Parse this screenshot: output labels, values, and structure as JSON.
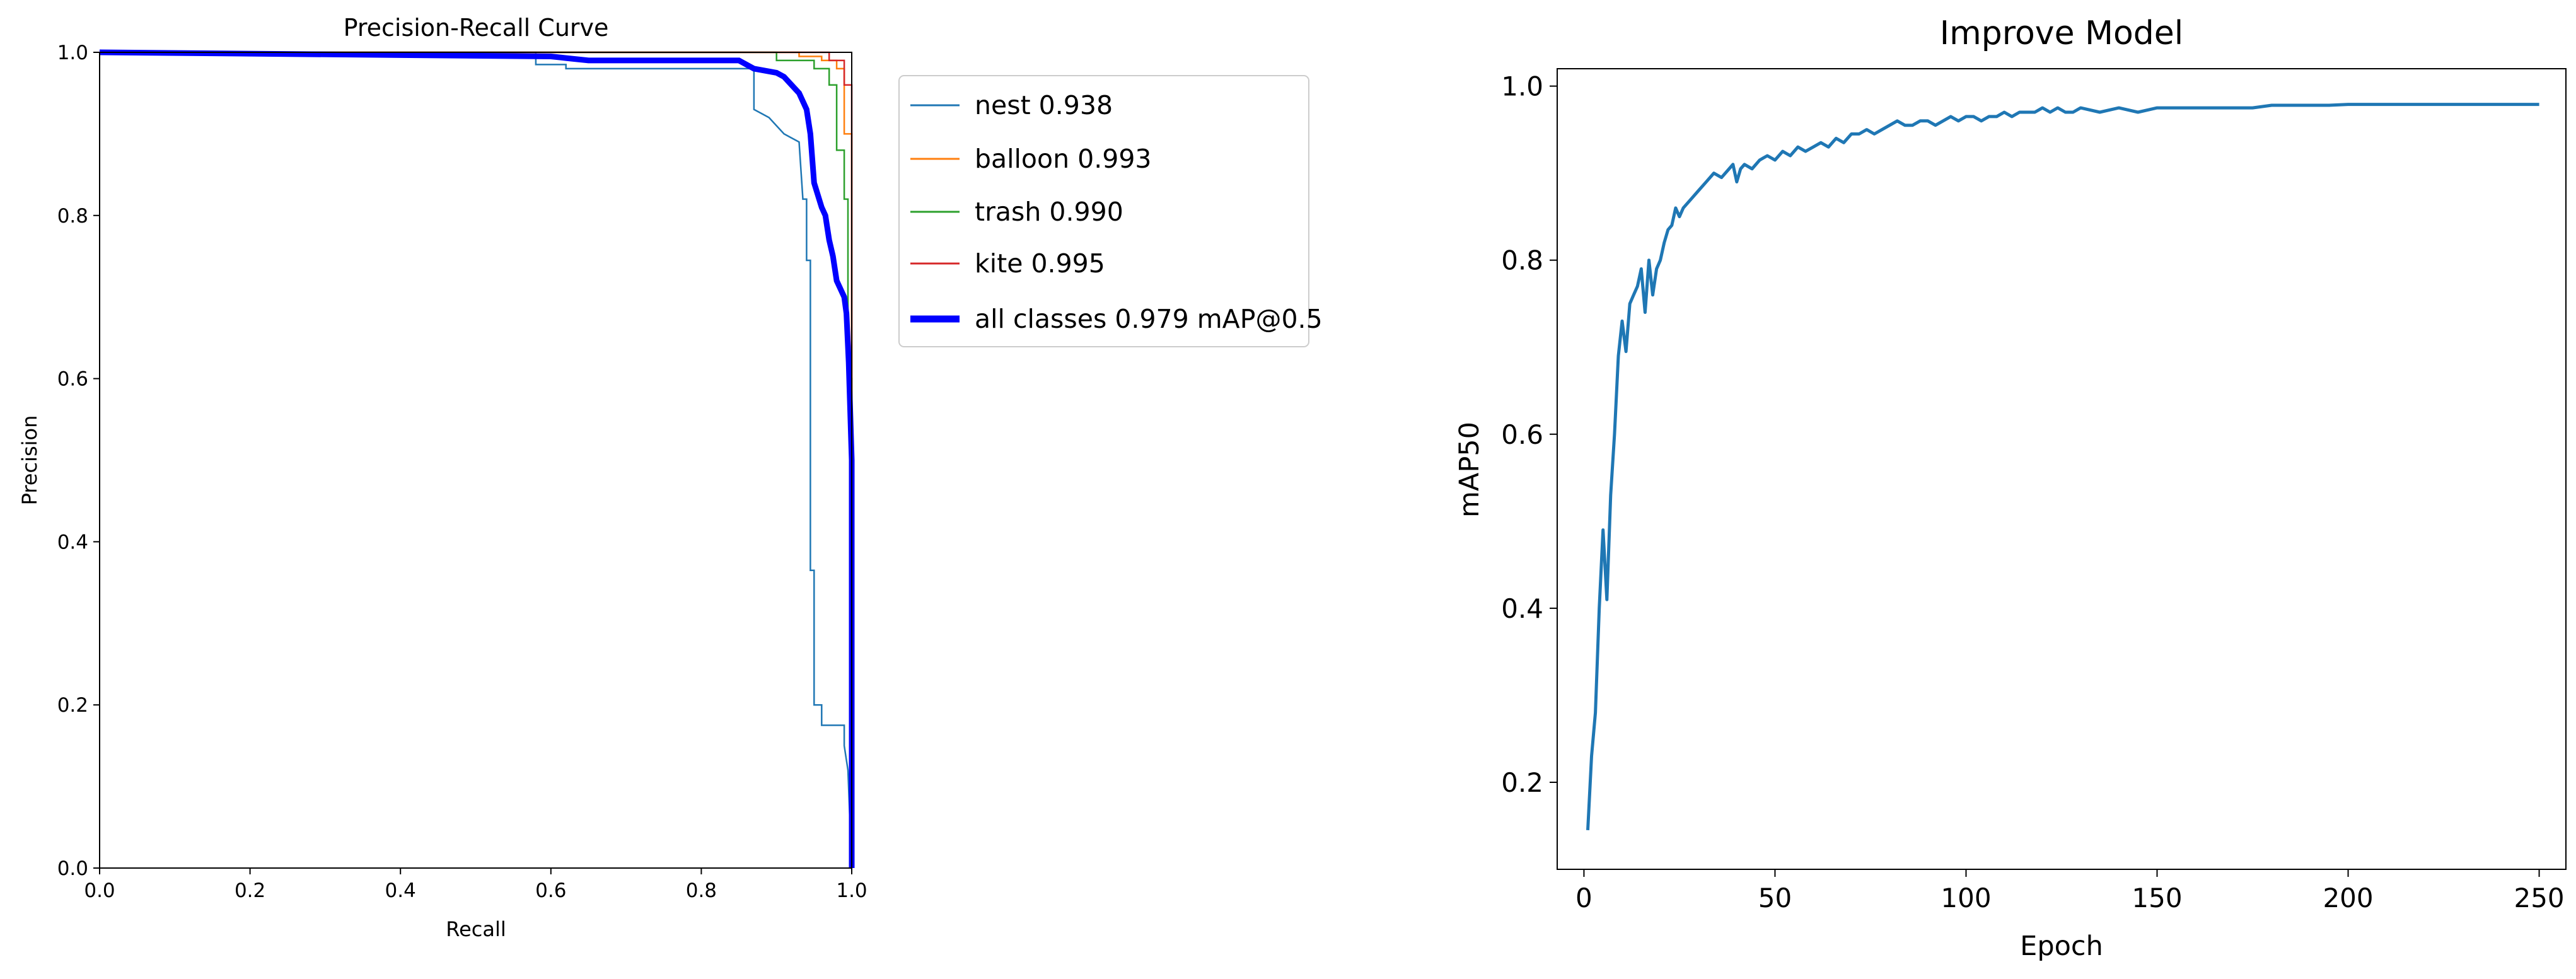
{
  "chart_data": [
    {
      "type": "line",
      "title": "Precision-Recall Curve",
      "xlabel": "Recall",
      "ylabel": "Precision",
      "xlim": [
        0,
        1
      ],
      "ylim": [
        0,
        1
      ],
      "xticks": [
        "0.0",
        "0.2",
        "0.4",
        "0.6",
        "0.8",
        "1.0"
      ],
      "yticks": [
        "0.0",
        "0.2",
        "0.4",
        "0.6",
        "0.8",
        "1.0"
      ],
      "grid": false,
      "legend_position": "outside-right",
      "series": [
        {
          "name": "nest 0.938",
          "color": "#1f77b4",
          "x": [
            0,
            0.58,
            0.58,
            0.62,
            0.62,
            0.87,
            0.87,
            0.88,
            0.89,
            0.9,
            0.91,
            0.92,
            0.93,
            0.935,
            0.94,
            0.94,
            0.945,
            0.945,
            0.95,
            0.95,
            0.96,
            0.96,
            0.99,
            0.99,
            0.995,
            1.0
          ],
          "y": [
            1.0,
            1.0,
            0.985,
            0.985,
            0.98,
            0.98,
            0.93,
            0.925,
            0.92,
            0.91,
            0.9,
            0.895,
            0.89,
            0.82,
            0.82,
            0.745,
            0.745,
            0.365,
            0.365,
            0.2,
            0.2,
            0.175,
            0.175,
            0.15,
            0.12,
            0.0
          ]
        },
        {
          "name": "balloon 0.993",
          "color": "#ff7f0e",
          "x": [
            0,
            0.93,
            0.93,
            0.96,
            0.96,
            0.98,
            0.98,
            0.99,
            0.99,
            1.0,
            1.0
          ],
          "y": [
            1.0,
            1.0,
            0.995,
            0.995,
            0.99,
            0.99,
            0.98,
            0.98,
            0.9,
            0.9,
            0.0
          ]
        },
        {
          "name": "trash 0.990",
          "color": "#2ca02c",
          "x": [
            0,
            0.9,
            0.9,
            0.95,
            0.95,
            0.97,
            0.97,
            0.98,
            0.98,
            0.99,
            0.99,
            0.995,
            0.995,
            1.0,
            1.0
          ],
          "y": [
            1.0,
            1.0,
            0.99,
            0.99,
            0.98,
            0.98,
            0.96,
            0.96,
            0.88,
            0.88,
            0.82,
            0.82,
            0.6,
            0.6,
            0.0
          ]
        },
        {
          "name": "kite 0.995",
          "color": "#d62728",
          "x": [
            0,
            0.97,
            0.97,
            0.99,
            0.99,
            1.0,
            1.0
          ],
          "y": [
            1.0,
            1.0,
            0.99,
            0.99,
            0.96,
            0.96,
            0.0
          ]
        },
        {
          "name": "all classes 0.979 mAP@0.5",
          "color": "#0000ff",
          "x": [
            0,
            0.6,
            0.62,
            0.65,
            0.7,
            0.75,
            0.8,
            0.85,
            0.87,
            0.9,
            0.91,
            0.92,
            0.93,
            0.94,
            0.945,
            0.95,
            0.96,
            0.965,
            0.97,
            0.975,
            0.98,
            0.985,
            0.99,
            0.993,
            0.996,
            0.998,
            1.0,
            1.0
          ],
          "y": [
            1.0,
            0.995,
            0.993,
            0.99,
            0.99,
            0.99,
            0.99,
            0.99,
            0.98,
            0.975,
            0.97,
            0.96,
            0.95,
            0.93,
            0.9,
            0.84,
            0.81,
            0.8,
            0.77,
            0.75,
            0.72,
            0.71,
            0.7,
            0.68,
            0.62,
            0.56,
            0.5,
            0.0
          ]
        }
      ]
    },
    {
      "type": "line",
      "title": "Improve Model",
      "xlabel": "Epoch",
      "ylabel": "mAP50",
      "xlim": [
        -7,
        257
      ],
      "ylim": [
        0.1,
        1.02
      ],
      "xticks": [
        "0",
        "50",
        "100",
        "150",
        "200",
        "250"
      ],
      "yticks": [
        "0.2",
        "0.4",
        "0.6",
        "0.8",
        "1.0"
      ],
      "grid": false,
      "color": "#1f77b4",
      "x": [
        1,
        2,
        3,
        4,
        5,
        6,
        7,
        8,
        9,
        10,
        11,
        12,
        13,
        14,
        15,
        16,
        17,
        18,
        19,
        20,
        21,
        22,
        23,
        24,
        25,
        26,
        28,
        30,
        32,
        34,
        36,
        38,
        39,
        40,
        41,
        42,
        44,
        46,
        48,
        50,
        52,
        54,
        56,
        58,
        60,
        62,
        64,
        66,
        68,
        70,
        72,
        74,
        76,
        78,
        80,
        82,
        84,
        86,
        88,
        90,
        92,
        94,
        96,
        98,
        100,
        102,
        104,
        106,
        108,
        110,
        112,
        114,
        116,
        118,
        120,
        122,
        124,
        126,
        128,
        130,
        135,
        140,
        145,
        150,
        155,
        160,
        165,
        170,
        175,
        180,
        185,
        190,
        195,
        200,
        205,
        210,
        215,
        220,
        225,
        230,
        235,
        240,
        245,
        250
      ],
      "y": [
        0.145,
        0.23,
        0.28,
        0.4,
        0.49,
        0.41,
        0.53,
        0.6,
        0.69,
        0.73,
        0.695,
        0.75,
        0.76,
        0.77,
        0.79,
        0.74,
        0.8,
        0.76,
        0.79,
        0.8,
        0.82,
        0.835,
        0.84,
        0.86,
        0.85,
        0.86,
        0.87,
        0.88,
        0.89,
        0.9,
        0.895,
        0.905,
        0.91,
        0.89,
        0.905,
        0.91,
        0.905,
        0.915,
        0.92,
        0.915,
        0.925,
        0.92,
        0.93,
        0.925,
        0.93,
        0.935,
        0.93,
        0.94,
        0.935,
        0.945,
        0.945,
        0.95,
        0.945,
        0.95,
        0.955,
        0.96,
        0.955,
        0.955,
        0.96,
        0.96,
        0.955,
        0.96,
        0.965,
        0.96,
        0.965,
        0.965,
        0.96,
        0.965,
        0.965,
        0.97,
        0.965,
        0.97,
        0.97,
        0.97,
        0.975,
        0.97,
        0.975,
        0.97,
        0.97,
        0.975,
        0.97,
        0.975,
        0.97,
        0.975,
        0.975,
        0.975,
        0.975,
        0.975,
        0.975,
        0.978,
        0.978,
        0.978,
        0.978,
        0.979,
        0.979,
        0.979,
        0.979,
        0.979,
        0.979,
        0.979,
        0.979,
        0.979,
        0.979,
        0.979
      ]
    }
  ]
}
